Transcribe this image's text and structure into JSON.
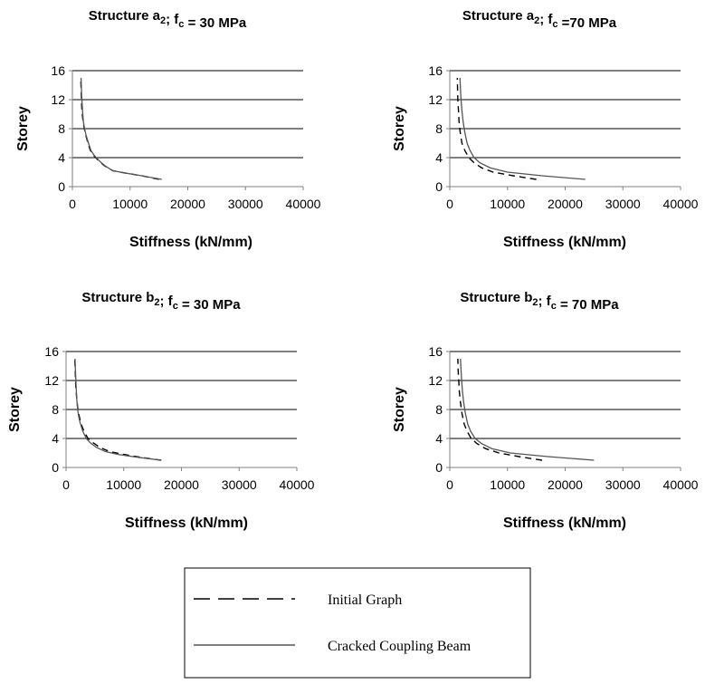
{
  "chart_data": [
    {
      "type": "line",
      "title": {
        "pre": "Structure a",
        "sub1": "2",
        "mid": "; f",
        "sub2": "c",
        "post": " = 30 MPa"
      },
      "xlabel": "Stiffness (kN/mm)",
      "ylabel": "Storey",
      "xlim": [
        0,
        40000
      ],
      "ylim": [
        0,
        16
      ],
      "xticks": [
        "0",
        "10000",
        "20000",
        "30000",
        "40000"
      ],
      "yticks": [
        "0",
        "4",
        "8",
        "12",
        "16"
      ],
      "grid": "horizontal",
      "series": [
        {
          "name": "Initial Graph",
          "style": "dashed",
          "x": [
            15000,
            12000,
            9000,
            7000,
            5500,
            4500,
            3700,
            3100,
            2700,
            2350,
            2050,
            1850,
            1650,
            1550,
            1450
          ],
          "y": [
            1,
            1.5,
            1.9,
            2.2,
            2.9,
            3.6,
            4.3,
            5,
            6,
            7,
            8,
            9,
            10.5,
            12.5,
            15
          ]
        },
        {
          "name": "Cracked Coupling Beam",
          "style": "solid",
          "x": [
            15500,
            12000,
            9000,
            7000,
            5600,
            4600,
            3800,
            3200,
            2800,
            2400,
            2100,
            1900,
            1750,
            1600,
            1500
          ],
          "y": [
            1,
            1.5,
            1.9,
            2.2,
            2.9,
            3.6,
            4.3,
            5,
            6,
            7,
            8,
            9,
            10.5,
            12.5,
            15
          ]
        }
      ]
    },
    {
      "type": "line",
      "title": {
        "pre": "Structure a",
        "sub1": "2",
        "mid": "; f",
        "sub2": "c",
        "post": " =70 MPa"
      },
      "xlabel": "Stiffness (kN/mm)",
      "ylabel": "Storey",
      "xlim": [
        0,
        40000
      ],
      "ylim": [
        0,
        16
      ],
      "xticks": [
        "0",
        "10000",
        "20000",
        "30000",
        "40000"
      ],
      "yticks": [
        "0",
        "4",
        "8",
        "12",
        "16"
      ],
      "grid": "horizontal",
      "series": [
        {
          "name": "Initial Graph",
          "style": "dashed",
          "x": [
            15000,
            11000,
            7500,
            5500,
            4200,
            3300,
            2600,
            2100,
            1800,
            1600,
            1500,
            1400,
            1350,
            1300
          ],
          "y": [
            1,
            1.5,
            2,
            2.6,
            3.3,
            4,
            5,
            6,
            7.5,
            9,
            10.5,
            12,
            13.5,
            15
          ]
        },
        {
          "name": "Cracked Coupling Beam",
          "style": "solid",
          "x": [
            23500,
            16000,
            10000,
            7000,
            5200,
            4200,
            3500,
            3000,
            2600,
            2300,
            2100,
            1950,
            1850,
            1750
          ],
          "y": [
            1,
            1.5,
            2,
            2.6,
            3.3,
            4,
            5,
            6,
            7.5,
            9,
            10.5,
            12,
            13.5,
            15
          ]
        }
      ]
    },
    {
      "type": "line",
      "title": {
        "pre": "Structure b",
        "sub1": "2",
        "mid": "; f",
        "sub2": "c",
        "post": " = 30 MPa"
      },
      "xlabel": "Stiffness (kN/mm)",
      "ylabel": "Storey",
      "xlim": [
        0,
        40000
      ],
      "ylim": [
        0,
        16
      ],
      "xticks": [
        "0",
        "10000",
        "20000",
        "30000",
        "40000"
      ],
      "yticks": [
        "0",
        "4",
        "8",
        "12",
        "16"
      ],
      "grid": "horizontal",
      "series": [
        {
          "name": "Initial Graph",
          "style": "dashed",
          "x": [
            16500,
            13000,
            10000,
            7500,
            5800,
            4700,
            3800,
            3100,
            2600,
            2300,
            2050,
            1850,
            1700,
            1600,
            1500
          ],
          "y": [
            1,
            1.4,
            1.8,
            2.2,
            2.8,
            3.4,
            4,
            5,
            6,
            7,
            8,
            9.5,
            11,
            13,
            15
          ]
        },
        {
          "name": "Cracked Coupling Beam",
          "style": "solid",
          "x": [
            16500,
            12500,
            9000,
            6800,
            5200,
            4200,
            3500,
            2900,
            2500,
            2200,
            2000,
            1850,
            1750,
            1650,
            1550
          ],
          "y": [
            1,
            1.4,
            1.8,
            2.2,
            2.8,
            3.4,
            4,
            5,
            6,
            7,
            8,
            9.5,
            11,
            13,
            15
          ]
        }
      ]
    },
    {
      "type": "line",
      "title": {
        "pre": "Structure b",
        "sub1": "2",
        "mid": "; f",
        "sub2": "c",
        "post": " = 70 MPa"
      },
      "xlabel": "Stiffness (kN/mm)",
      "ylabel": "Storey",
      "xlim": [
        0,
        40000
      ],
      "ylim": [
        0,
        16
      ],
      "xticks": [
        "0",
        "10000",
        "20000",
        "30000",
        "40000"
      ],
      "yticks": [
        "0",
        "4",
        "8",
        "12",
        "16"
      ],
      "grid": "horizontal",
      "series": [
        {
          "name": "Initial Graph",
          "style": "dashed",
          "x": [
            16000,
            12000,
            8500,
            6200,
            4700,
            3700,
            3000,
            2500,
            2100,
            1850,
            1650,
            1550,
            1450,
            1400
          ],
          "y": [
            1,
            1.5,
            2,
            2.6,
            3.3,
            4,
            5,
            6,
            7.5,
            9,
            10.5,
            12,
            13.5,
            15
          ]
        },
        {
          "name": "Cracked Coupling Beam",
          "style": "solid",
          "x": [
            25000,
            17000,
            10500,
            7300,
            5500,
            4400,
            3600,
            3100,
            2700,
            2400,
            2200,
            2050,
            1950,
            1850
          ],
          "y": [
            1,
            1.5,
            2,
            2.6,
            3.3,
            4,
            5,
            6,
            7.5,
            9,
            10.5,
            12,
            13.5,
            15
          ]
        }
      ]
    }
  ],
  "legend": {
    "placement": "bottom-center",
    "items": [
      {
        "label": "Initial Graph",
        "style": "dashed"
      },
      {
        "label": "Cracked Coupling Beam",
        "style": "solid"
      }
    ]
  },
  "colors": {
    "initial": "#000000",
    "cracked": "#555555",
    "grid": "#000000",
    "axis": "#808080"
  }
}
